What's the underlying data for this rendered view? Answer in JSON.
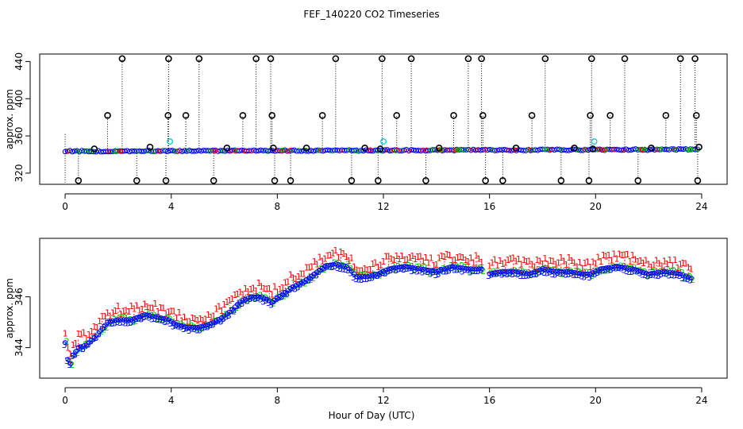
{
  "chart_data": [
    {
      "type": "scatter",
      "title": "FEF_140220  CO2 Timeseries",
      "xlabel": "",
      "ylabel": "approx. ppm",
      "xlim": [
        -0.96,
        24.96
      ],
      "ylim": [
        308,
        448
      ],
      "x_ticks": [
        0,
        4,
        8,
        12,
        16,
        20,
        24
      ],
      "y_ticks": [
        320,
        360,
        400,
        440
      ],
      "baseline": {
        "start": 343.5,
        "end": 345.5,
        "color": "#0000ff"
      },
      "spikes": [
        {
          "x": 0.5,
          "y": 312
        },
        {
          "x": 1.1,
          "y": 346
        },
        {
          "x": 1.6,
          "y": 382
        },
        {
          "x": 2.15,
          "y": 443
        },
        {
          "x": 2.7,
          "y": 312
        },
        {
          "x": 3.2,
          "y": 348
        },
        {
          "x": 3.8,
          "y": 312
        },
        {
          "x": 3.88,
          "y": 382
        },
        {
          "x": 3.9,
          "y": 443
        },
        {
          "x": 4.55,
          "y": 382
        },
        {
          "x": 5.05,
          "y": 443
        },
        {
          "x": 5.6,
          "y": 312
        },
        {
          "x": 6.1,
          "y": 347
        },
        {
          "x": 6.7,
          "y": 382
        },
        {
          "x": 7.2,
          "y": 443
        },
        {
          "x": 7.75,
          "y": 443
        },
        {
          "x": 7.8,
          "y": 382
        },
        {
          "x": 7.85,
          "y": 347
        },
        {
          "x": 7.9,
          "y": 312
        },
        {
          "x": 8.5,
          "y": 312
        },
        {
          "x": 9.1,
          "y": 347
        },
        {
          "x": 9.7,
          "y": 382
        },
        {
          "x": 10.2,
          "y": 443
        },
        {
          "x": 10.8,
          "y": 312
        },
        {
          "x": 11.3,
          "y": 347
        },
        {
          "x": 11.8,
          "y": 312
        },
        {
          "x": 11.88,
          "y": 346
        },
        {
          "x": 11.95,
          "y": 443
        },
        {
          "x": 12.5,
          "y": 382
        },
        {
          "x": 13.05,
          "y": 443
        },
        {
          "x": 13.6,
          "y": 312
        },
        {
          "x": 14.1,
          "y": 347
        },
        {
          "x": 14.65,
          "y": 382
        },
        {
          "x": 15.2,
          "y": 443
        },
        {
          "x": 15.7,
          "y": 443
        },
        {
          "x": 15.75,
          "y": 382
        },
        {
          "x": 15.85,
          "y": 312
        },
        {
          "x": 16.5,
          "y": 312
        },
        {
          "x": 17.0,
          "y": 347
        },
        {
          "x": 17.6,
          "y": 382
        },
        {
          "x": 18.1,
          "y": 443
        },
        {
          "x": 18.7,
          "y": 312
        },
        {
          "x": 19.2,
          "y": 347
        },
        {
          "x": 19.75,
          "y": 312
        },
        {
          "x": 19.8,
          "y": 382
        },
        {
          "x": 19.85,
          "y": 443
        },
        {
          "x": 19.9,
          "y": 346
        },
        {
          "x": 20.55,
          "y": 382
        },
        {
          "x": 21.1,
          "y": 443
        },
        {
          "x": 21.6,
          "y": 312
        },
        {
          "x": 22.1,
          "y": 347
        },
        {
          "x": 22.65,
          "y": 382
        },
        {
          "x": 23.2,
          "y": 443
        },
        {
          "x": 23.75,
          "y": 443
        },
        {
          "x": 23.8,
          "y": 382
        },
        {
          "x": 23.85,
          "y": 312
        },
        {
          "x": 23.9,
          "y": 348
        }
      ],
      "cyan_points": [
        {
          "x": 3.95,
          "y": 354
        },
        {
          "x": 12.0,
          "y": 354
        },
        {
          "x": 19.95,
          "y": 354
        }
      ]
    },
    {
      "type": "scatter",
      "title": "",
      "xlabel": "Hour of Day (UTC)",
      "ylabel": "approx. ppm",
      "xlim": [
        -0.96,
        24.96
      ],
      "ylim": [
        342.8,
        348.3
      ],
      "x_ticks": [
        0,
        4,
        8,
        12,
        16,
        20,
        24
      ],
      "y_ticks": [
        344,
        346
      ],
      "marker_labels": [
        "1",
        "2",
        "3"
      ],
      "series_colors": {
        "1": "#ff0000",
        "2": "#00cc00",
        "3": "#0000ff"
      },
      "gap": [
        15.7,
        15.95
      ],
      "profile": [
        {
          "x": 0.0,
          "y": 344.2
        },
        {
          "x": 0.15,
          "y": 343.2
        },
        {
          "x": 0.3,
          "y": 343.7
        },
        {
          "x": 0.5,
          "y": 344.0
        },
        {
          "x": 0.8,
          "y": 344.1
        },
        {
          "x": 1.2,
          "y": 344.5
        },
        {
          "x": 1.6,
          "y": 345.0
        },
        {
          "x": 2.0,
          "y": 345.1
        },
        {
          "x": 2.5,
          "y": 345.1
        },
        {
          "x": 3.0,
          "y": 345.3
        },
        {
          "x": 3.5,
          "y": 345.2
        },
        {
          "x": 3.9,
          "y": 345.1
        },
        {
          "x": 4.2,
          "y": 344.9
        },
        {
          "x": 4.6,
          "y": 344.8
        },
        {
          "x": 5.0,
          "y": 344.8
        },
        {
          "x": 5.4,
          "y": 344.9
        },
        {
          "x": 5.8,
          "y": 345.1
        },
        {
          "x": 6.2,
          "y": 345.4
        },
        {
          "x": 6.6,
          "y": 345.8
        },
        {
          "x": 7.0,
          "y": 346.0
        },
        {
          "x": 7.4,
          "y": 346.0
        },
        {
          "x": 7.8,
          "y": 345.8
        },
        {
          "x": 8.2,
          "y": 346.1
        },
        {
          "x": 8.6,
          "y": 346.4
        },
        {
          "x": 9.0,
          "y": 346.6
        },
        {
          "x": 9.4,
          "y": 346.9
        },
        {
          "x": 9.8,
          "y": 347.2
        },
        {
          "x": 10.2,
          "y": 347.3
        },
        {
          "x": 10.6,
          "y": 347.2
        },
        {
          "x": 11.0,
          "y": 346.8
        },
        {
          "x": 11.4,
          "y": 346.8
        },
        {
          "x": 11.8,
          "y": 346.9
        },
        {
          "x": 12.2,
          "y": 347.1
        },
        {
          "x": 12.8,
          "y": 347.2
        },
        {
          "x": 13.4,
          "y": 347.1
        },
        {
          "x": 14.0,
          "y": 347.0
        },
        {
          "x": 14.6,
          "y": 347.2
        },
        {
          "x": 15.2,
          "y": 347.1
        },
        {
          "x": 15.7,
          "y": 347.1
        },
        {
          "x": 15.95,
          "y": 346.9
        },
        {
          "x": 16.5,
          "y": 347.0
        },
        {
          "x": 17.0,
          "y": 347.0
        },
        {
          "x": 17.5,
          "y": 346.9
        },
        {
          "x": 18.0,
          "y": 347.1
        },
        {
          "x": 18.5,
          "y": 347.0
        },
        {
          "x": 19.0,
          "y": 347.0
        },
        {
          "x": 19.5,
          "y": 346.9
        },
        {
          "x": 19.8,
          "y": 346.9
        },
        {
          "x": 20.2,
          "y": 347.1
        },
        {
          "x": 20.8,
          "y": 347.2
        },
        {
          "x": 21.4,
          "y": 347.1
        },
        {
          "x": 22.0,
          "y": 346.9
        },
        {
          "x": 22.6,
          "y": 347.0
        },
        {
          "x": 23.2,
          "y": 346.9
        },
        {
          "x": 23.7,
          "y": 346.7
        }
      ]
    }
  ]
}
